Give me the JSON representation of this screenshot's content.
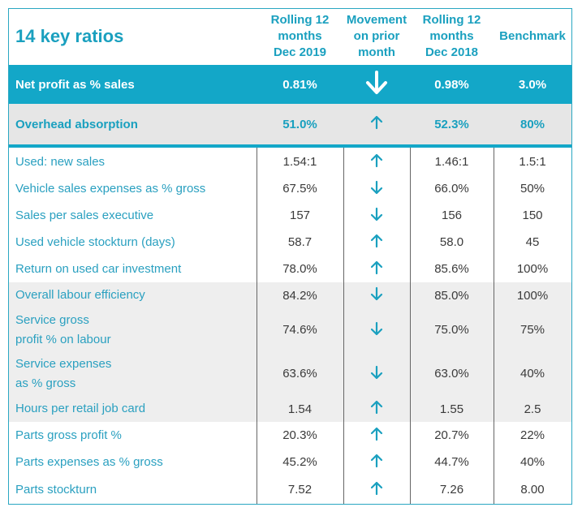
{
  "title": "14 key ratios",
  "headers": {
    "col1": [
      "Rolling 12",
      "months",
      "Dec 2019"
    ],
    "col2": [
      "Movement",
      "on prior",
      "month"
    ],
    "col3": [
      "Rolling 12",
      "months",
      "Dec 2018"
    ],
    "col4": "Benchmark"
  },
  "colors": {
    "accent": "#13a7c8",
    "label": "#2aa0c0",
    "shade": "#eeeeee"
  },
  "highlight_rows": [
    {
      "label": "Net profit as % sales",
      "v2019": "0.81%",
      "movement": "down",
      "v2018": "0.98%",
      "benchmark": "3.0%"
    },
    {
      "label": "Overhead absorption",
      "v2019": "51.0%",
      "movement": "up",
      "v2018": "52.3%",
      "benchmark": "80%"
    }
  ],
  "rows": [
    {
      "label": [
        "Used: new sales"
      ],
      "v2019": "1.54:1",
      "movement": "up",
      "v2018": "1.46:1",
      "benchmark": "1.5:1"
    },
    {
      "label": [
        "Vehicle sales expenses as % gross"
      ],
      "v2019": "67.5%",
      "movement": "down",
      "v2018": "66.0%",
      "benchmark": "50%"
    },
    {
      "label": [
        "Sales per sales executive"
      ],
      "v2019": "157",
      "movement": "down",
      "v2018": "156",
      "benchmark": "150"
    },
    {
      "label": [
        "Used vehicle stockturn (days)"
      ],
      "v2019": "58.7",
      "movement": "up",
      "v2018": "58.0",
      "benchmark": "45"
    },
    {
      "label": [
        "Return on used car investment"
      ],
      "v2019": "78.0%",
      "movement": "up",
      "v2018": "85.6%",
      "benchmark": "100%"
    },
    {
      "label": [
        "Overall labour efficiency"
      ],
      "v2019": "84.2%",
      "movement": "down",
      "v2018": "85.0%",
      "benchmark": "100%"
    },
    {
      "label": [
        "Service gross",
        "profit % on labour"
      ],
      "v2019": "74.6%",
      "movement": "down",
      "v2018": "75.0%",
      "benchmark": "75%"
    },
    {
      "label": [
        "Service expenses",
        "as % gross"
      ],
      "v2019": "63.6%",
      "movement": "down",
      "v2018": "63.0%",
      "benchmark": "40%"
    },
    {
      "label": [
        "Hours per retail job card"
      ],
      "v2019": "1.54",
      "movement": "up",
      "v2018": "1.55",
      "benchmark": "2.5"
    },
    {
      "label": [
        "Parts gross profit %"
      ],
      "v2019": "20.3%",
      "movement": "up",
      "v2018": "20.7%",
      "benchmark": "22%"
    },
    {
      "label": [
        "Parts expenses as % gross"
      ],
      "v2019": "45.2%",
      "movement": "up",
      "v2018": "44.7%",
      "benchmark": "40%"
    },
    {
      "label": [
        "Parts stockturn"
      ],
      "v2019": "7.52",
      "movement": "up",
      "v2018": "7.26",
      "benchmark": "8.00"
    }
  ]
}
